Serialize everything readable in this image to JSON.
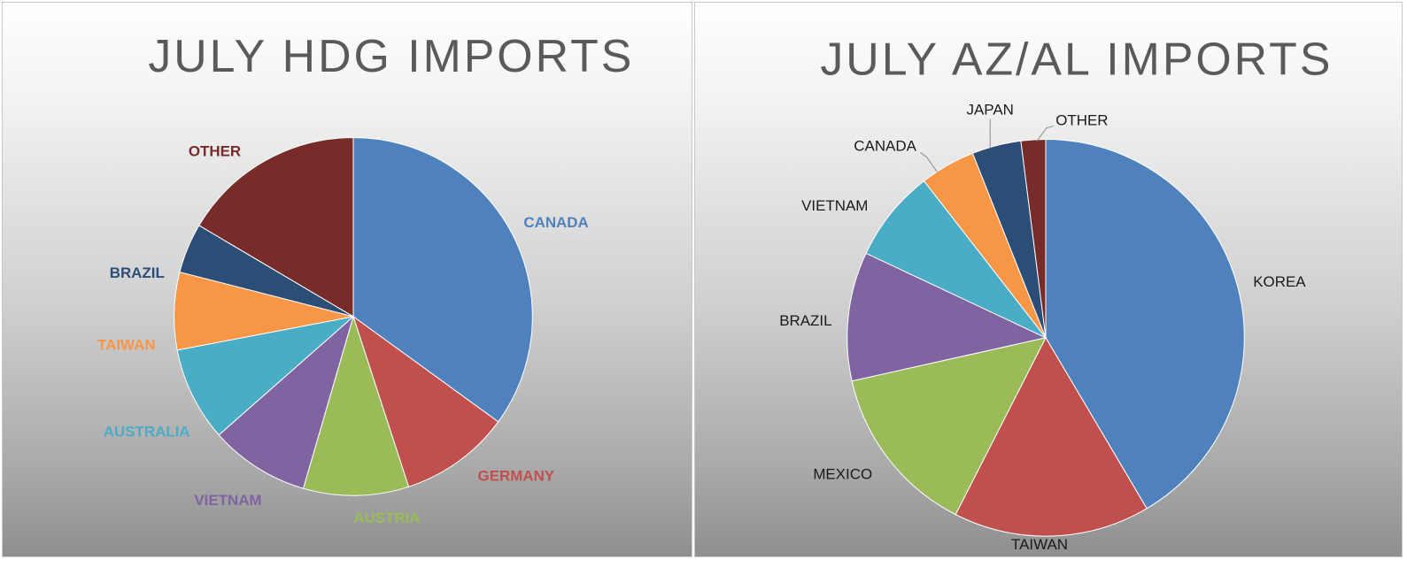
{
  "chart_data": [
    {
      "type": "pie",
      "title": "JULY HDG IMPORTS",
      "labels_colored": true,
      "slices": [
        {
          "label": "CANADA",
          "value": 35.0,
          "color": "#4f81bd"
        },
        {
          "label": "GERMANY",
          "value": 10.0,
          "color": "#c0504d"
        },
        {
          "label": "AUSTRIA",
          "value": 9.5,
          "color": "#9bbb59"
        },
        {
          "label": "VIETNAM",
          "value": 9.0,
          "color": "#8064a2"
        },
        {
          "label": "AUSTRALIA",
          "value": 8.5,
          "color": "#4bacc6"
        },
        {
          "label": "TAIWAN",
          "value": 7.0,
          "color": "#f79646"
        },
        {
          "label": "BRAZIL",
          "value": 4.5,
          "color": "#2c4d75"
        },
        {
          "label": "OTHER",
          "value": 16.5,
          "color": "#772c2a"
        }
      ]
    },
    {
      "type": "pie",
      "title": "JULY AZ/AL IMPORTS",
      "labels_colored": false,
      "slices": [
        {
          "label": "KOREA",
          "value": 41.5,
          "color": "#4f81bd"
        },
        {
          "label": "TAIWAN",
          "value": 16.0,
          "color": "#c0504d"
        },
        {
          "label": "MEXICO",
          "value": 14.0,
          "color": "#9bbb59"
        },
        {
          "label": "BRAZIL",
          "value": 10.5,
          "color": "#8064a2"
        },
        {
          "label": "VIETNAM",
          "value": 7.5,
          "color": "#4bacc6"
        },
        {
          "label": "CANADA",
          "value": 4.5,
          "color": "#f79646"
        },
        {
          "label": "JAPAN",
          "value": 4.0,
          "color": "#2c4d75"
        },
        {
          "label": "OTHER",
          "value": 2.0,
          "color": "#772c2a"
        }
      ]
    }
  ]
}
